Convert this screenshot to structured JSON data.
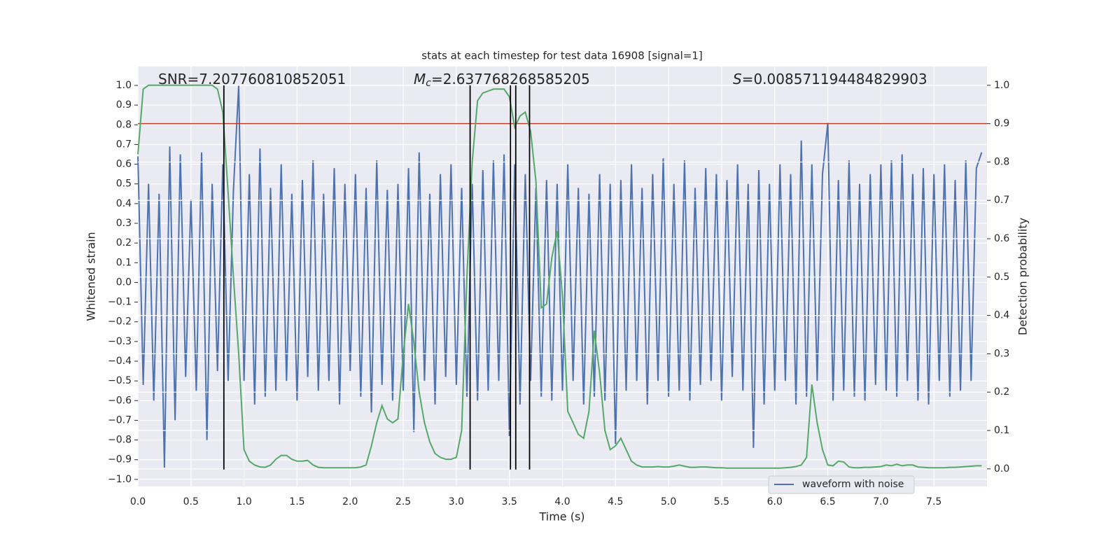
{
  "chart_data": {
    "type": "line",
    "title": "stats at each timestep for test data 16908 [signal=1]",
    "xlabel": "Time (s)",
    "ylabel": "Whitened strain",
    "y2label": "Detection probability",
    "xlim": [
      0,
      8
    ],
    "ylim": [
      -1.036,
      1.096
    ],
    "y2lim": [
      -0.046,
      1.049
    ],
    "grid": true,
    "legend": "lower right",
    "x": [
      0,
      0.05,
      0.1,
      0.15,
      0.2,
      0.25,
      0.3,
      0.35,
      0.4,
      0.45,
      0.5,
      0.55,
      0.6,
      0.65,
      0.7,
      0.75,
      0.8,
      0.85,
      0.9,
      0.95,
      1,
      1.05,
      1.1,
      1.15,
      1.2,
      1.25,
      1.3,
      1.35,
      1.4,
      1.45,
      1.5,
      1.55,
      1.6,
      1.65,
      1.7,
      1.75,
      1.8,
      1.85,
      1.9,
      1.95,
      2,
      2.05,
      2.1,
      2.15,
      2.2,
      2.25,
      2.3,
      2.35,
      2.4,
      2.45,
      2.5,
      2.55,
      2.6,
      2.65,
      2.7,
      2.75,
      2.8,
      2.85,
      2.9,
      2.95,
      3,
      3.05,
      3.1,
      3.15,
      3.2,
      3.25,
      3.3,
      3.35,
      3.4,
      3.45,
      3.5,
      3.55,
      3.6,
      3.65,
      3.7,
      3.75,
      3.8,
      3.85,
      3.9,
      3.95,
      4,
      4.05,
      4.1,
      4.15,
      4.2,
      4.25,
      4.3,
      4.35,
      4.4,
      4.45,
      4.5,
      4.55,
      4.6,
      4.65,
      4.7,
      4.75,
      4.8,
      4.85,
      4.9,
      4.95,
      5,
      5.05,
      5.1,
      5.15,
      5.2,
      5.25,
      5.3,
      5.35,
      5.4,
      5.45,
      5.5,
      5.55,
      5.6,
      5.65,
      5.7,
      5.75,
      5.8,
      5.85,
      5.9,
      5.95,
      6,
      6.05,
      6.1,
      6.15,
      6.2,
      6.25,
      6.3,
      6.35,
      6.4,
      6.45,
      6.5,
      6.55,
      6.6,
      6.65,
      6.7,
      6.75,
      6.8,
      6.85,
      6.9,
      6.95,
      7,
      7.05,
      7.1,
      7.15,
      7.2,
      7.25,
      7.3,
      7.35,
      7.4,
      7.45,
      7.5,
      7.55,
      7.6,
      7.65,
      7.7,
      7.75,
      7.8,
      7.85,
      7.9,
      7.95
    ],
    "series": [
      {
        "name": "waveform with noise",
        "color": "#4c72b0",
        "axis": "y",
        "values": [
          0.64,
          -0.52,
          0.5,
          -0.6,
          0.45,
          -0.94,
          0.69,
          -0.7,
          0.65,
          -0.48,
          0.42,
          -0.55,
          0.66,
          -0.8,
          0.5,
          -0.45,
          0.6,
          -0.5,
          0.47,
          1.0,
          -0.5,
          0.55,
          -0.62,
          0.68,
          -0.58,
          0.48,
          -0.55,
          0.6,
          -0.5,
          0.45,
          -0.6,
          0.52,
          -0.48,
          0.62,
          -0.55,
          0.45,
          -0.5,
          0.58,
          -0.62,
          0.5,
          -0.45,
          0.55,
          -0.58,
          0.48,
          -0.66,
          0.62,
          -0.52,
          0.47,
          -0.6,
          0.5,
          -0.55,
          0.58,
          -0.76,
          0.66,
          -0.5,
          0.45,
          -0.62,
          0.55,
          -0.48,
          0.6,
          -0.52,
          0.48,
          -0.58,
          0.5,
          -0.6,
          0.57,
          -0.55,
          0.62,
          -0.5,
          0.65,
          -0.78,
          0.6,
          -0.62,
          0.55,
          -0.5,
          0.48,
          -0.58,
          0.52,
          -0.6,
          0.5,
          -0.55,
          0.6,
          -0.5,
          0.48,
          -0.62,
          0.45,
          -0.58,
          0.55,
          -0.6,
          0.5,
          -0.82,
          0.52,
          -0.55,
          0.6,
          -0.5,
          0.48,
          -0.62,
          0.55,
          -0.5,
          0.63,
          -0.58,
          0.5,
          -0.55,
          0.62,
          -0.6,
          0.48,
          -0.52,
          0.58,
          -0.5,
          0.55,
          -0.6,
          0.52,
          -0.48,
          0.6,
          -0.55,
          0.5,
          -0.84,
          0.57,
          -0.62,
          0.5,
          -0.55,
          0.6,
          -0.5,
          0.55,
          -0.62,
          0.72,
          -0.58,
          0.6,
          -0.5,
          0.55,
          0.81,
          -0.6,
          0.52,
          -0.55,
          0.62,
          -0.58,
          0.5,
          -0.6,
          0.55,
          -0.52,
          0.6,
          -0.55,
          0.62,
          -0.58,
          0.65,
          -0.5,
          0.55,
          -0.6,
          0.58,
          -0.62,
          0.55,
          -0.5,
          0.6,
          -0.58,
          0.52,
          -0.55,
          0.62,
          -0.5,
          0.58,
          0.66
        ]
      },
      {
        "color": "#55a868",
        "axis": "y2",
        "values": [
          0.82,
          0.99,
          1.0,
          1.0,
          1.0,
          1.0,
          1.0,
          1.0,
          1.0,
          1.0,
          1.0,
          1.0,
          1.0,
          1.0,
          1.0,
          0.99,
          0.93,
          0.72,
          0.5,
          0.3,
          0.05,
          0.02,
          0.01,
          0.005,
          0.004,
          0.01,
          0.025,
          0.035,
          0.035,
          0.025,
          0.02,
          0.02,
          0.022,
          0.01,
          0.004,
          0.003,
          0.003,
          0.003,
          0.003,
          0.003,
          0.003,
          0.003,
          0.005,
          0.01,
          0.06,
          0.12,
          0.165,
          0.13,
          0.12,
          0.13,
          0.3,
          0.43,
          0.33,
          0.2,
          0.12,
          0.07,
          0.04,
          0.03,
          0.025,
          0.025,
          0.03,
          0.1,
          0.5,
          0.8,
          0.96,
          0.98,
          0.985,
          0.99,
          0.99,
          0.99,
          0.97,
          0.89,
          0.92,
          0.93,
          0.88,
          0.75,
          0.42,
          0.43,
          0.55,
          0.62,
          0.45,
          0.15,
          0.12,
          0.09,
          0.08,
          0.15,
          0.36,
          0.25,
          0.1,
          0.05,
          0.06,
          0.08,
          0.05,
          0.02,
          0.01,
          0.005,
          0.005,
          0.005,
          0.006,
          0.005,
          0.005,
          0.007,
          0.01,
          0.007,
          0.004,
          0.004,
          0.005,
          0.005,
          0.004,
          0.003,
          0.003,
          0.002,
          0.002,
          0.002,
          0.002,
          0.002,
          0.002,
          0.002,
          0.002,
          0.002,
          0.002,
          0.002,
          0.003,
          0.004,
          0.006,
          0.01,
          0.03,
          0.22,
          0.12,
          0.05,
          0.01,
          0.008,
          0.02,
          0.018,
          0.005,
          0.003,
          0.003,
          0.004,
          0.004,
          0.005,
          0.006,
          0.01,
          0.008,
          0.012,
          0.008,
          0.01,
          0.01,
          0.005,
          0.004,
          0.003,
          0.003,
          0.003,
          0.003,
          0.004,
          0.004,
          0.005,
          0.006,
          0.007,
          0.008,
          0.008
        ]
      }
    ],
    "vlines": [
      0.81,
      3.13,
      3.51,
      3.56,
      3.69
    ],
    "vline_range": [
      -0.95,
      1.0
    ],
    "vline_color": "#000000",
    "hline_y2": 0.9,
    "hline_color": "#c0392b",
    "annotations": [
      {
        "text": "SNR=7.207760810852051"
      },
      {
        "symbol": "M",
        "subscript": "c",
        "text": "=2.637768268585205"
      },
      {
        "symbol": "S",
        "text": "=0.008571194484829903"
      }
    ],
    "xticks": [
      {
        "value": 0,
        "label": "0.0"
      },
      {
        "value": 0.5,
        "label": "0.5"
      },
      {
        "value": 1,
        "label": "1.0"
      },
      {
        "value": 1.5,
        "label": "1.5"
      },
      {
        "value": 2,
        "label": "2.0"
      },
      {
        "value": 2.5,
        "label": "2.5"
      },
      {
        "value": 3,
        "label": "3.0"
      },
      {
        "value": 3.5,
        "label": "3.5"
      },
      {
        "value": 4,
        "label": "4.0"
      },
      {
        "value": 4.5,
        "label": "4.5"
      },
      {
        "value": 5,
        "label": "5.0"
      },
      {
        "value": 5.5,
        "label": "5.5"
      },
      {
        "value": 6,
        "label": "6.0"
      },
      {
        "value": 6.5,
        "label": "6.5"
      },
      {
        "value": 7,
        "label": "7.0"
      },
      {
        "value": 7.5,
        "label": "7.5"
      }
    ],
    "yticks": [
      {
        "value": -1,
        "label": "−1.0"
      },
      {
        "value": -0.9,
        "label": "−0.9"
      },
      {
        "value": -0.8,
        "label": "−0.8"
      },
      {
        "value": -0.7,
        "label": "−0.7"
      },
      {
        "value": -0.6,
        "label": "−0.6"
      },
      {
        "value": -0.5,
        "label": "−0.5"
      },
      {
        "value": -0.4,
        "label": "−0.4"
      },
      {
        "value": -0.3,
        "label": "−0.3"
      },
      {
        "value": -0.2,
        "label": "−0.2"
      },
      {
        "value": -0.1,
        "label": "−0.1"
      },
      {
        "value": 0,
        "label": "0.0"
      },
      {
        "value": 0.1,
        "label": "0.1"
      },
      {
        "value": 0.2,
        "label": "0.2"
      },
      {
        "value": 0.3,
        "label": "0.3"
      },
      {
        "value": 0.4,
        "label": "0.4"
      },
      {
        "value": 0.5,
        "label": "0.5"
      },
      {
        "value": 0.6,
        "label": "0.6"
      },
      {
        "value": 0.7,
        "label": "0.7"
      },
      {
        "value": 0.8,
        "label": "0.8"
      },
      {
        "value": 0.9,
        "label": "0.9"
      },
      {
        "value": 1,
        "label": "1.0"
      }
    ],
    "y2ticks": [
      {
        "value": 0,
        "label": "0.0"
      },
      {
        "value": 0.1,
        "label": "0.1"
      },
      {
        "value": 0.2,
        "label": "0.2"
      },
      {
        "value": 0.3,
        "label": "0.3"
      },
      {
        "value": 0.4,
        "label": "0.4"
      },
      {
        "value": 0.5,
        "label": "0.5"
      },
      {
        "value": 0.6,
        "label": "0.6"
      },
      {
        "value": 0.7,
        "label": "0.7"
      },
      {
        "value": 0.8,
        "label": "0.8"
      },
      {
        "value": 0.9,
        "label": "0.9"
      },
      {
        "value": 1,
        "label": "1.0"
      }
    ]
  }
}
